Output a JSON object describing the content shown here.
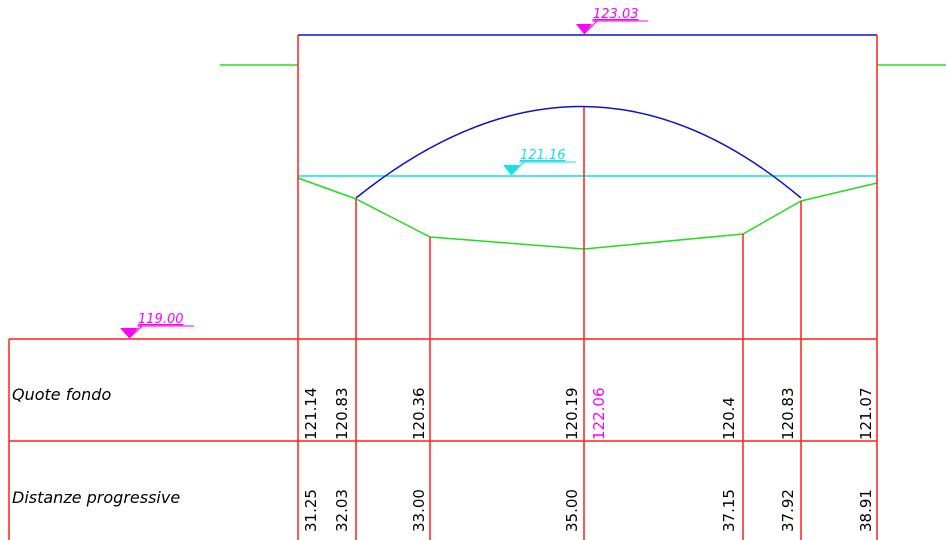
{
  "colors": {
    "grid": "#ff1e1e",
    "terrain": "#22dd22",
    "water": "#16e0e8",
    "culvert": "#1010c8",
    "accent": "#ff00ff",
    "text": "#000000"
  },
  "elevation_markers": {
    "top": "123.03",
    "water": "121.16",
    "datum": "119.00"
  },
  "table": {
    "row_quote_label": "Quote fondo",
    "row_dist_label": "Distanze progressive",
    "center_elevation": "122.06",
    "columns": [
      {
        "quota": "121.14",
        "distanza": "31.25"
      },
      {
        "quota": "120.83",
        "distanza": "32.03"
      },
      {
        "quota": "120.36",
        "distanza": "33.00"
      },
      {
        "quota": "120.19",
        "distanza": "35.00"
      },
      {
        "quota": "120.4",
        "distanza": "37.15"
      },
      {
        "quota": "120.83",
        "distanza": "37.92"
      },
      {
        "quota": "121.07",
        "distanza": "38.91"
      }
    ]
  }
}
